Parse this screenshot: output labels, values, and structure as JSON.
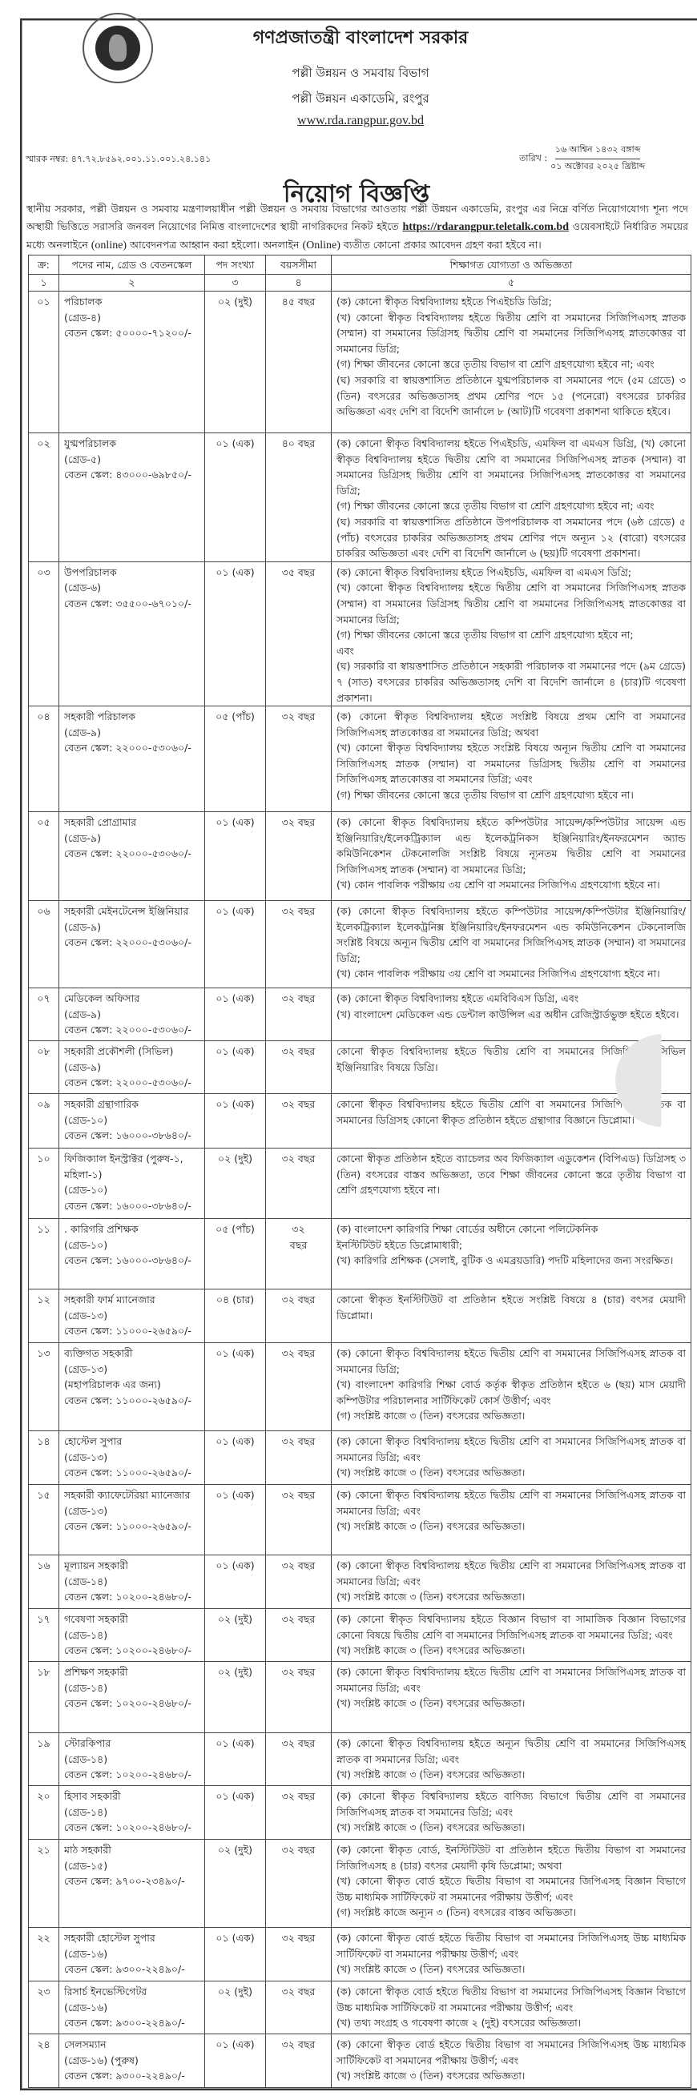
{
  "header": {
    "seal_text": "গণপ্রজাতন্ত্রী বাংলাদেশ সরকার",
    "government": "গণপ্রজাতন্ত্রী বাংলাদেশ সরকার",
    "division": "পল্লী উন্নয়ন ও সমবায় বিভাগ",
    "academy": "পল্লী উন্নয়ন একাডেমি, রংপুর",
    "website": "www.rda.rangpur.gov.bd",
    "memo": "স্মারক নম্বর: ৪৭.৭২.৮৫৯২.০০১.১১.০০১.২৪.১৪১",
    "date_label": "তারিখ :",
    "date_bangla": "১৬ আশ্বিন ১৪৩২ বঙ্গাব্দ",
    "date_english": "০১ অক্টোবর ২০২৫ খ্রিষ্টাব্দ"
  },
  "title": "নিয়োগ বিজ্ঞপ্তি",
  "intro": {
    "part1": "স্থানীয় সরকার, পল্লী উন্নয়ন ও সমবায় মন্ত্রণালয়াধীন পল্লী উন্নয়ন ও সমবায় বিভাগের আওতায় পল্লী উন্নয়ন একাডেমি, রংপুর এর নিম্নে বর্ণিত নিয়োগযোগ্য শূন্য পদে অস্থায়ী ভিত্তিতে সরাসরি জনবল নিয়োগের নিমিত্ত বাংলাদেশের স্থায়ী নাগরিকদের নিকট হইতে",
    "link": "https://rdarangpur.teletalk.com.bd",
    "part2": "ওয়েবসাইটে নির্ধারিত সময়ের মধ্যে অনলাইনে",
    "online1": "(online)",
    "part3": "আবেদনপত্র আহ্বান করা হইলো। অনলাইন",
    "online2": "(Online)",
    "part4": "ব্যতীত কোনো প্রকার আবেদন গ্রহণ করা হইবে না।"
  },
  "table": {
    "headers": [
      "ক্র:",
      "পদের নাম, গ্রেড ও বেতনস্কেল",
      "পদ সংখ্যা",
      "বয়সসীমা",
      "শিক্ষাগত যোগ্যতা ও অভিজ্ঞতা"
    ],
    "column_numbers": [
      "১",
      "২",
      "৩",
      "৪",
      "৫"
    ],
    "rows": [
      {
        "serial": "০১",
        "name": [
          "পরিচালক",
          "(গ্রেড-৪)",
          "বেতন স্কেল: ৫০০০০-৭১২০০/-"
        ],
        "posts": "০২ (দুই)",
        "age": "৪৫ বছর",
        "qualifications": [
          "(ক) কোনো স্বীকৃত বিশ্ববিদ্যালয় হইতে পিএইচডি ডিগ্রি;",
          "(খ) কোনো স্বীকৃত বিশ্ববিদ্যালয় হইতে দ্বিতীয় শ্রেণি বা সমমানের সিজিপিএসহ স্নাতক (সম্মান) বা সমমানের ডিগ্রিসহ দ্বিতীয় শ্রেণি বা সমমানের সিজিপিএসহ স্নাতকোত্তর বা সমমানের ডিগ্রি;",
          "(গ) শিক্ষা জীবনের কোনো স্তরে তৃতীয় বিভাগ বা শ্রেণি গ্রহণযোগ্য হইবে না; এবং",
          "(ঘ) সরকারি বা স্বায়ত্তশাসিত প্রতিষ্ঠানে যুগ্মপরিচালক বা সমমানের পদে (৫ম গ্রেডে) ৩ (তিন) বৎসরের অভিজ্ঞতাসহ প্রথম শ্রেণির পদে ১৫ (পনেরো) বৎসরের চাকরির অভিজ্ঞতা এবং দেশি বা বিদেশি জার্নালে ৮ (আট)টি গবেষণা প্রকাশনা থাকিতে হইবে।"
        ]
      },
      {
        "serial": "০২",
        "name": [
          "যুগ্মপরিচালক",
          "(গ্রেড-৫)",
          "বেতন স্কেল: ৪৩০০০-৬৯৮৫০/-"
        ],
        "posts": "০১ (এক)",
        "age": "৪০ বছর",
        "qualifications": [
          "(ক) কোনো স্বীকৃত বিশ্ববিদ্যালয় হইতে পিএইচডি, এমফিল বা এমএস ডিগ্রি, (খ) কোনো স্বীকৃত বিশ্ববিদ্যালয় হইতে দ্বিতীয় শ্রেণি বা সমমানের সিজিপিএসহ স্নাতক (সম্মান) বা সমমানের ডিগ্রিসহ দ্বিতীয় শ্রেণি বা সমমানের সিজিপিএসহ স্নাতকোত্তর বা সমমানের ডিগ্রি;",
          "(গ) শিক্ষা জীবনের কোনো স্তরে তৃতীয় বিভাগ বা শ্রেণি গ্রহণযোগ্য হইবে না; এবং",
          "(ঘ) সরকারি বা স্বায়ত্তশাসিত প্রতিষ্ঠানে উপপরিচালক বা সমমানের পদে (৬ষ্ঠ গ্রেডে) ৫ (পাঁচ) বৎসরের চাকরির অভিজ্ঞতাসহ প্রথম শ্রেণির পদে অন্যূন ১২ (বারো) বৎসরের চাকরির অভিজ্ঞতা এবং দেশি বা বিদেশি জার্নালে ৬ (ছয়)টি গবেষণা প্রকাশনা।"
        ]
      },
      {
        "serial": "০৩",
        "name": [
          "উপপরিচালক",
          "(গ্রেড-৬)",
          "বেতন স্কেল: ৩৫৫০০-৬৭০১০/-"
        ],
        "posts": "০১ (এক)",
        "age": "৩৫ বছর",
        "qualifications": [
          "(ক) কোনো স্বীকৃত বিশ্ববিদ্যালয় হইতে পিএইচডি, এমফিল বা এমএস ডিগ্রি;",
          "(খ) কোনো স্বীকৃত বিশ্ববিদ্যালয় হইতে দ্বিতীয় শ্রেণি বা সমমানের সিজিপিএসহ স্নাতক (সম্মান) বা সমমানের ডিগ্রিসহ দ্বিতীয় শ্রেণি বা সমমানের সিজিপিএসহ স্নাতকোত্তর বা সমমানের ডিগ্রি;",
          "(গ) শিক্ষা জীবনের কোনো স্তরে তৃতীয় বিভাগ বা শ্রেণি গ্রহণযোগ্য হইবে না;",
          "এবং",
          "(ঘ) সরকারি বা স্বায়ত্তশাসিত প্রতিষ্ঠানে সহকারী পরিচালক বা সমমানের পদে (৯ম গ্রেডে) ৭ (সাত) বৎসরের চাকরির অভিজ্ঞতাসহ দেশি বা বিদেশি জার্নালে ৪ (চার)টি গবেষণা প্রকাশনা।"
        ]
      },
      {
        "serial": "০৪",
        "name": [
          "সহকারী পরিচালক",
          "(গ্রেড-৯)",
          "বেতন স্কেল: ২২০০০-৫৩০৬০/-"
        ],
        "posts": "০৫ (পাঁচ)",
        "age": "৩২ বছর",
        "qualifications": [
          "(ক) কোনো স্বীকৃত বিশ্ববিদ্যালয় হইতে সংশ্লিষ্ট বিষয়ে প্রথম শ্রেণি বা সমমানের সিজিপিএসহ স্নাতকোত্তর বা সমমানের ডিগ্রি; অথবা",
          "(খ) কোনো স্বীকৃত বিশ্ববিদ্যালয় হইতে সংশ্লিষ্ট বিষয়ে অন্যূন দ্বিতীয় শ্রেণি বা সমমানের সিজিপিএসহ স্নাতক (সম্মান) বা সমমানের ডিগ্রিসহ দ্বিতীয় শ্রেণি বা সমমানের সিজিপিএসহ স্নাতকোত্তর বা সমমানের ডিগ্রি; এবং",
          "(গ) শিক্ষা জীবনের কোনো স্তরে তৃতীয় বিভাগ বা শ্রেণি গ্রহণযোগ্য হইবে না।"
        ]
      },
      {
        "serial": "০৫",
        "name": [
          "সহকারী প্রোগ্রামার",
          "(গ্রেড-৯)",
          "বেতন স্কেল: ২২০০০-৫৩০৬০/-"
        ],
        "posts": "০১ (এক)",
        "age": "৩২ বছর",
        "qualifications": [
          "(ক) কোনো স্বীকৃত বিশ্ববিদ্যালয় হইতে কম্পিউটার সায়েন্স/কম্পিউটার সায়েন্স এন্ড ইঞ্জিনিয়ারিং/ইলেকট্রিক্যাল এন্ড ইলেকট্রনিকস ইঞ্জিনিয়ারিং/ইনফরমেশন অ্যান্ড কমিউনিকেশন টেকনোলজি সংশ্লিষ্ট বিষয়ে ন্যূনতম দ্বিতীয় শ্রেণি বা সমমানের সিজিপিএসহ স্নাতক (সম্মান) বা সমমানের ডিগ্রি;",
          "(খ) কোন পাবলিক পরীক্ষায় ৩য় শ্রেণি বা সমমানের সিজিপিএ গ্রহণযোগ্য হইবে না।"
        ]
      },
      {
        "serial": "০৬",
        "name": [
          "সহকারী মেইনটেনেন্স ইঞ্জিনিয়ার",
          "(গ্রেড-৯)",
          "বেতন স্কেল: ২২০০০-৫৩০৬০/-"
        ],
        "posts": "০১ (এক)",
        "age": "৩২ বছর",
        "qualifications": [
          "(ক) কোনো স্বীকৃত বিশ্ববিদ্যালয় হইতে কম্পিউটার সায়েন্স/কম্পিউটার ইঞ্জিনিয়ারিং/ইলেকট্রিক্যাল ইলেকট্রনিক্স ইঞ্জিনিয়ারিং/ইনফরমেশন এন্ড কমিউনিকেশন টেকনোলজি সংশ্লিষ্ট বিষয়ে অন্যূন দ্বিতীয় শ্রেণি বা সমমানের সিজিপিএসহ স্নাতক (সম্মান) বা সমমানের ডিগ্রি;",
          "(খ) কোন পাবলিক পরীক্ষায় ৩য় শ্রেণি বা সমমানের সিজিপিএ গ্রহণযোগ্য হইবে না।"
        ]
      },
      {
        "serial": "০৭",
        "name": [
          "মেডিকেল অফিসার",
          "(গ্রেড-৯)",
          "বেতন স্কেল: ২২০০০-৫৩০৬০/-"
        ],
        "posts": "০১ (এক)",
        "age": "৩২ বছর",
        "qualifications": [
          "(ক) কোনো স্বীকৃত বিশ্ববিদ্যালয় হইতে এমবিবিএস ডিগ্রি, এবং",
          "(খ) বাংলাদেশ মেডিকেল এন্ড ডেন্টাল কাউন্সিল এর অধীন রেজিস্ট্রার্ডভুক্ত হইতে হইবে।"
        ]
      },
      {
        "serial": "০৮",
        "name": [
          "সহকারী প্রকৌশলী (সিভিল)",
          "(গ্রেড-৯)",
          "বেতন স্কেল: ২২০০০-৫৩০৬০/-"
        ],
        "posts": "০১ (এক)",
        "age": "৩২ বছর",
        "qualifications": [
          "কোনো স্বীকৃত বিশ্ববিদ্যালয় হইতে দ্বিতীয় শ্রেণি বা সমমানের সিজিপিএসহ সিভিল ইঞ্জিনিয়ারিং বিষয়ে ডিগ্রি।"
        ]
      },
      {
        "serial": "০৯",
        "name": [
          "সহকারী গ্রন্থাগারিক",
          "(গ্রেড-১০)",
          "বেতন স্কেল: ১৬০০০-৩৮৬৪০/-"
        ],
        "posts": "০১ (এক)",
        "age": "৩২ বছর",
        "qualifications": [
          "কোনো স্বীকৃত বিশ্ববিদ্যালয় হইতে দ্বিতীয় শ্রেণি বা সমমানের সিজিপিএসহ স্নাতক বা সমমানের ডিগ্রিসহ কোনো স্বীকৃত প্রতিষ্ঠান হইতে গ্রন্থাগার বিজ্ঞানে ডিপ্লোমা।"
        ]
      },
      {
        "serial": "১০",
        "name": [
          "ফিজিক্যাল ইনস্ট্রাক্টর (পুরুষ-১, মহিলা-১)",
          "(গ্রেড-১০)",
          "বেতন স্কেল: ১৬০০০-৩৮৬৪০/-"
        ],
        "posts": "০২ (দুই)",
        "age": "৩২ বছর",
        "qualifications": [
          "কোনো স্বীকৃত প্রতিষ্ঠান হইতে ব্যাচেলর অব ফিজিক্যাল এডুকেশন (বিপিএড) ডিগ্রিসহ ৩ (তিন) বৎসরের বাস্তব অভিজ্ঞতা, তবে শিক্ষা জীবনের কোনো স্তরে তৃতীয় বিভাগ বা শ্রেণি গ্রহণযোগ্য হইবে না।"
        ]
      },
      {
        "serial": "১১",
        "name": [
          ". কারিগরি প্রশিক্ষক",
          "(গ্রেড-১০)",
          "বেতন স্কেল: ১৬০০০-৩৮৬৪০/-"
        ],
        "posts": "০৫ (পাঁচ)",
        "age": "৩২ বছর",
        "qualifications": [
          "(ক) বাংলাদেশ কারিগরি শিক্ষা বোর্ডের অধীনে কোনো পলিটেকনিক",
          "ইনস্টিটিউট হইতে ডিপ্লোমাধারী;",
          "(খ) কারিগরি প্রশিক্ষক (সেলাই, বুটিক ও এমব্রয়ডারি) পদটি মহিলাদের জন্য সংরক্ষিত।"
        ]
      },
      {
        "serial": "১২",
        "name": [
          "সহকারী ফার্ম ম্যানেজার",
          "(গ্রেড-১৩)",
          "বেতন স্কেল: ১১০০০-২৬৫৯০/-"
        ],
        "posts": "০৪ (চার)",
        "age": "৩২ বছর",
        "qualifications": [
          "কোনো স্বীকৃত ইনস্টিটিউট বা প্রতিষ্ঠান হইতে সংশ্লিষ্ট বিষয়ে ৪ (চার) বৎসর মেয়াদী ডিপ্লোমা।"
        ]
      },
      {
        "serial": "১৩",
        "name": [
          "ব্যক্তিগত সহকারী",
          "(গ্রেড-১৩)",
          "(মহাপরিচালক এর জন্য)",
          "বেতন স্কেল: ১১০০০-২৬৫৯০/-"
        ],
        "posts": "০১ (এক)",
        "age": "৩২ বছর",
        "qualifications": [
          "(ক) কোনো স্বীকৃত বিশ্ববিদ্যালয় হইতে দ্বিতীয় শ্রেণি বা সমমানের সিজিপিএসহ স্নাতক বা সমমানের ডিগ্রি;",
          "(খ) বাংলাদেশ কারিগরি শিক্ষা বোর্ড কর্তৃক স্বীকৃত প্রতিষ্ঠান হইতে ৬ (ছয়) মাস মেয়াদী কম্পিউটার পরিচালনার সার্টিফিকেট কোর্স উত্তীর্ণ; এবং",
          "(গ) সংশ্লিষ্ট কাজে ৩ (তিন) বৎসরের অভিজ্ঞতা।"
        ]
      },
      {
        "serial": "১৪",
        "name": [
          "হোস্টেল সুপার",
          "(গ্রেড-১৩)",
          "বেতন স্কেল: ১১০০০-২৬৫৯০/-"
        ],
        "posts": "০১ (এক)",
        "age": "৩২ বছর",
        "qualifications": [
          "(ক) কোনো স্বীকৃত বিশ্ববিদ্যালয় হইতে দ্বিতীয় শ্রেণি বা সমমানের সিজিপিএসহ স্নাতক বা সমমানের ডিগ্রি; এবং",
          "(খ) সংশ্লিষ্ট কাজে ৩ (তিন) বৎসরের অভিজ্ঞতা।"
        ]
      },
      {
        "serial": "১৫",
        "name": [
          "সহকারী ক্যাফেটেরিয়া ম্যানেজার",
          "(গ্রেড-১৩)",
          "বেতন স্কেল: ১১০০০-২৬৫৯০/-"
        ],
        "posts": "০১ (এক)",
        "age": "৩২ বছর",
        "qualifications": [
          "(ক) কোনো স্বীকৃত বিশ্ববিদ্যালয় হইতে দ্বিতীয় শ্রেণি বা সমমানের সিজিপিএসহ স্নাতক বা সমমানের ডিগ্রি; এবং",
          "(খ) সংশ্লিষ্ট কাজে ৩ (তিন) বৎসরের অভিজ্ঞতা।"
        ]
      },
      {
        "serial": "১৬",
        "name": [
          "মূল্যায়ন সহকারী",
          "(গ্রেড-১৪)",
          "বেতন স্কেল: ১০২০০-২৪৬৮০/-"
        ],
        "posts": "০১ (এক)",
        "age": "৩২ বছর",
        "qualifications": [
          "(ক) কোনো স্বীকৃত বিশ্ববিদ্যালয় হইতে দ্বিতীয় শ্রেণি বা সমমানের সিজিপিএসহ স্নাতক বা সমমানের ডিগ্রি; এবং",
          "(খ) সংশ্লিষ্ট কাজে ৩ (তিন) বৎসরের অভিজ্ঞতা।"
        ]
      },
      {
        "serial": "১৭",
        "name": [
          "গবেষণা সহকারী",
          "(গ্রেড-১৪)",
          "বেতন স্কেল: ১০২০০-২৪৬৮০/-"
        ],
        "posts": "০২ (দুই)",
        "age": "৩২ বছর",
        "qualifications": [
          "(ক) কোনো স্বীকৃত বিশ্ববিদ্যালয় হইতে বিজ্ঞান বিভাগ বা সামাজিক বিজ্ঞান বিভাগের কোনো বিষয়ে দ্বিতীয় শ্রেণি বা সমমানের সিজিপিএসহ স্নাতক বা সমমানের ডিগ্রি; এবং",
          "(খ) সংশ্লিষ্ট কাজে ৩ (তিন) বৎসরের অভিজ্ঞতা।"
        ]
      },
      {
        "serial": "১৮",
        "name": [
          "প্রশিক্ষণ সহকারী",
          "(গ্রেড-১৪)",
          "বেতন স্কেল: ১০২০০-২৪৬৮০/-"
        ],
        "posts": "০২ (দুই)",
        "age": "৩২ বছর",
        "qualifications": [
          "(ক) কোনো স্বীকৃত বিশ্ববিদ্যালয় হইতে দ্বিতীয় শ্রেণি বা সমমানের সিজিপিএসহ স্নাতক বা সমমানের ডিগ্রি; এবং",
          "(খ) সংশ্লিষ্ট কাজে ৩ (তিন) বৎসরের অভিজ্ঞতা।"
        ]
      },
      {
        "serial": "১৯",
        "name": [
          "স্টোরকিপার",
          "(গ্রেড-১৪)",
          "বেতন স্কেল: ১০২০০-২৪৬৮০/-"
        ],
        "posts": "০১ (এক)",
        "age": "৩২ বছর",
        "qualifications": [
          "(ক) কোনো স্বীকৃত বিশ্ববিদ্যালয় হইতে অন্যূন দ্বিতীয় শ্রেণি বা সমমানের সিজিপিএসহ স্নাতক বা সমমানের ডিগ্রি; এবং",
          "(খ) সংশ্লিষ্ট কাজে ৩ (তিন) বৎসরের অভিজ্ঞতা।"
        ]
      },
      {
        "serial": "২০",
        "name": [
          "হিসাব সহকারী",
          "(গ্রেড-১৪)",
          "বেতন স্কেল: ১০২০০-২৪৬৮০/-"
        ],
        "posts": "০১ (এক)",
        "age": "৩২ বছর",
        "qualifications": [
          "(ক) কোনো স্বীকৃত বিশ্ববিদ্যালয় হইতে বাণিজ্য বিভাগে দ্বিতীয় শ্রেণি বা সমমানের সিজিপিএসহ স্নাতক বা সমমানের ডিগ্রি; এবং",
          "(খ) সংশ্লিষ্ট কাজে ৩ (তিন) বৎসরের অভিজ্ঞতা।"
        ]
      },
      {
        "serial": "২১",
        "name": [
          "মাঠ সহকারী",
          "(গ্রেড-১৫)",
          "বেতন স্কেল: ৯৭০০-২৩৪৯০/-"
        ],
        "posts": "০২ (দুই)",
        "age": "৩২ বছর",
        "qualifications": [
          "(ক) কোনো স্বীকৃত বোর্ড, ইনস্টিটিউট বা প্রতিষ্ঠান হইতে দ্বিতীয় বিভাগ বা সমমানের সিজিপিএসহ ৪ (চার) বৎসর মেয়াদী কৃষি ডিপ্লোমা; অথবা",
          "(খ) কোনো স্বীকৃত বোর্ড হইতে দ্বিতীয় বিভাগ বা সমমানের জিপিএসহ বিজ্ঞান বিভাগে উচ্চ মাধ্যমিক সার্টিফিকেট বা সমমানের পরীক্ষায় উত্তীর্ণ; এবং",
          "(গ) সংশ্লিষ্ট কাজে অন্যূন ৩ (তিন) বৎসরের বাস্তব অভিজ্ঞতা।"
        ]
      },
      {
        "serial": "২২",
        "name": [
          "সহকারী হোস্টেল সুপার",
          "(গ্রেড-১৬)",
          "বেতন স্কেল: ৯৩০০-২২৪৯০/-"
        ],
        "posts": "০১ (এক)",
        "age": "৩২ বছর",
        "qualifications": [
          "(ক) কোনো স্বীকৃত বোর্ড হইতে দ্বিতীয় বিভাগ বা সমমানের সিজিপিএসহ উচ্চ মাধ্যমিক সার্টিফিকেট বা সমমানের পরীক্ষায় উত্তীর্ণ; এবং",
          "(খ) সংশ্লিষ্ট কাজে ৩ (তিন) বৎসরের অভিজ্ঞতা।"
        ]
      },
      {
        "serial": "২৩",
        "name": [
          "রিসার্চ ইনভেস্টিগেটর",
          "(গ্রেড-১৬)",
          "বেতন স্কেল: ৯৩০০-২২৪৯০/-"
        ],
        "posts": "০২ (দুই)",
        "age": "৩২ বছর",
        "qualifications": [
          "(ক) কোনো স্বীকৃত বোর্ড হইতে দ্বিতীয় বিভাগ বা সমমানের সিজিপিএসহ বিজ্ঞান বিভাগে উচ্চ মাধ্যমিক সার্টিফিকেট বা সমমানের পরীক্ষায় উত্তীর্ণ; এবং",
          "(খ) তথ্য সংগ্রহ ও গবেষণা কাজে ২ (দুই) বৎসরের অভিজ্ঞতা।"
        ]
      },
      {
        "serial": "২৪",
        "name": [
          "সেলসম্যান",
          "(গ্রেড-১৬) (পুরুষ)",
          "বেতন স্কেল: ৯৩০০-২২৪৯০/-"
        ],
        "posts": "০১ (এক)",
        "age": "৩২ বছর",
        "qualifications": [
          "(ক) কোনো স্বীকৃত বোর্ড হইতে দ্বিতীয় বিভাগ বা সমমানের সিজিপিএসহ উচ্চ মাধ্যমিক সার্টিফিকেট বা সমমানের পরীক্ষায় উত্তীর্ণ; এবং",
          "(খ) সংশ্লিষ্ট কাজে ৩ (তিন) বৎসরের অভিজ্ঞতা।"
        ]
      }
    ]
  }
}
